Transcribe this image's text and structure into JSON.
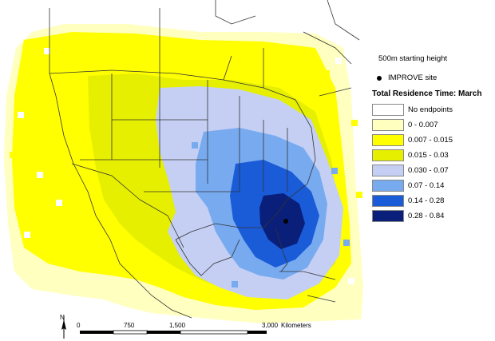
{
  "legend": {
    "starting_height": "500m starting height",
    "site_label": "IMPROVE site",
    "title": "Total Residence Time: March",
    "classes": [
      {
        "label": "No endpoints",
        "color": "#ffffff"
      },
      {
        "label": "0 - 0.007",
        "color": "#ffffc0"
      },
      {
        "label": "0.007 - 0.015",
        "color": "#ffff00"
      },
      {
        "label": "0.015 - 0.03",
        "color": "#e6ef00"
      },
      {
        "label": "0.030 - 0.07",
        "color": "#c4cff3"
      },
      {
        "label": "0.07 - 0.14",
        "color": "#78aaf0"
      },
      {
        "label": "0.14 - 0.28",
        "color": "#1a5cd8"
      },
      {
        "label": "0.28 - 0.84",
        "color": "#0a1f7a"
      }
    ]
  },
  "scale_bar": {
    "ticks": [
      "0",
      "750",
      "1,500",
      "3,000"
    ],
    "unit": "Kilometers",
    "north_label": "N"
  }
}
